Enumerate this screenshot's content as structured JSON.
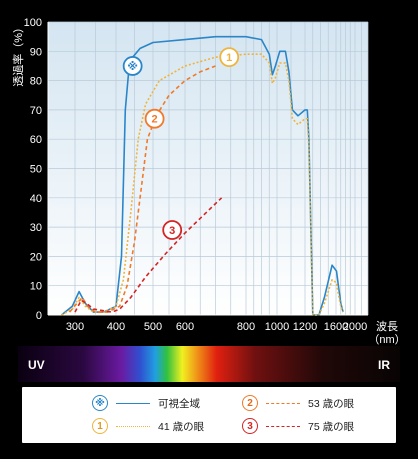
{
  "chart_data": {
    "type": "line",
    "ylabel": "透過率（%）",
    "xlabel": "波長（nm）",
    "ylim": [
      0,
      100
    ],
    "y_ticks": [
      "0",
      "10",
      "20",
      "30",
      "40",
      "50",
      "60",
      "70",
      "80",
      "90",
      "100"
    ],
    "x_tick_labels": [
      "300",
      "400",
      "500",
      "600",
      "800",
      "1000",
      "1200",
      "1600",
      "2000"
    ],
    "x_axis_title_lines": [
      "波長",
      "（nm）"
    ],
    "grid": true,
    "spectrum_band": {
      "left_label": "UV",
      "right_label": "IR"
    },
    "series": [
      {
        "name": "可視全域",
        "badge": "※",
        "color": "#2a86c8",
        "style": "solid",
        "points": [
          [
            275,
            0
          ],
          [
            295,
            3
          ],
          [
            310,
            8
          ],
          [
            325,
            4
          ],
          [
            345,
            1
          ],
          [
            370,
            1
          ],
          [
            400,
            3
          ],
          [
            415,
            20
          ],
          [
            425,
            70
          ],
          [
            435,
            84
          ],
          [
            445,
            88
          ],
          [
            465,
            91
          ],
          [
            500,
            93
          ],
          [
            600,
            94
          ],
          [
            700,
            95
          ],
          [
            800,
            95
          ],
          [
            900,
            94
          ],
          [
            950,
            89
          ],
          [
            970,
            82
          ],
          [
            990,
            85
          ],
          [
            1020,
            90
          ],
          [
            1060,
            90
          ],
          [
            1085,
            83
          ],
          [
            1110,
            70
          ],
          [
            1150,
            68
          ],
          [
            1200,
            70
          ],
          [
            1230,
            70
          ],
          [
            1250,
            60
          ],
          [
            1300,
            0
          ],
          [
            1380,
            0
          ],
          [
            1450,
            6
          ],
          [
            1550,
            17
          ],
          [
            1610,
            15
          ],
          [
            1650,
            10
          ],
          [
            1700,
            4
          ],
          [
            1750,
            1
          ]
        ]
      },
      {
        "name": "41 歳の眼",
        "badge": "1",
        "color": "#f0b43c",
        "style": "dotted",
        "points": [
          [
            275,
            0
          ],
          [
            295,
            2
          ],
          [
            310,
            6
          ],
          [
            325,
            3
          ],
          [
            345,
            1
          ],
          [
            370,
            1
          ],
          [
            400,
            3
          ],
          [
            420,
            12
          ],
          [
            440,
            35
          ],
          [
            460,
            60
          ],
          [
            480,
            72
          ],
          [
            520,
            80
          ],
          [
            600,
            85
          ],
          [
            700,
            88
          ],
          [
            800,
            89
          ],
          [
            900,
            89
          ],
          [
            950,
            86
          ],
          [
            970,
            79
          ],
          [
            990,
            81
          ],
          [
            1020,
            86
          ],
          [
            1060,
            86
          ],
          [
            1085,
            80
          ],
          [
            1110,
            67
          ],
          [
            1150,
            65
          ],
          [
            1200,
            67
          ],
          [
            1230,
            67
          ],
          [
            1250,
            57
          ],
          [
            1300,
            0
          ],
          [
            1380,
            0
          ],
          [
            1450,
            4
          ],
          [
            1550,
            12
          ],
          [
            1610,
            11
          ],
          [
            1650,
            7
          ],
          [
            1700,
            3
          ],
          [
            1750,
            1
          ]
        ]
      },
      {
        "name": "53 歳の眼",
        "badge": "2",
        "color": "#f07a28",
        "style": "dashed",
        "points": [
          [
            290,
            1
          ],
          [
            305,
            4
          ],
          [
            318,
            6
          ],
          [
            330,
            3
          ],
          [
            350,
            1
          ],
          [
            380,
            1
          ],
          [
            410,
            3
          ],
          [
            430,
            10
          ],
          [
            450,
            25
          ],
          [
            470,
            45
          ],
          [
            485,
            60
          ],
          [
            510,
            68
          ],
          [
            550,
            75
          ],
          [
            600,
            80
          ],
          [
            650,
            83
          ],
          [
            700,
            85
          ]
        ]
      },
      {
        "name": "75 歳の眼",
        "badge": "3",
        "color": "#d42424",
        "style": "dashed",
        "points": [
          [
            300,
            1
          ],
          [
            315,
            5
          ],
          [
            328,
            4
          ],
          [
            345,
            2
          ],
          [
            390,
            1
          ],
          [
            410,
            2
          ],
          [
            440,
            6
          ],
          [
            480,
            13
          ],
          [
            540,
            21
          ],
          [
            600,
            28
          ],
          [
            660,
            34
          ],
          [
            720,
            40
          ]
        ]
      }
    ],
    "callouts": [
      {
        "series": 0,
        "label": "※",
        "at": [
          445,
          85
        ]
      },
      {
        "series": 1,
        "label": "1",
        "at": [
          745,
          88
        ]
      },
      {
        "series": 2,
        "label": "2",
        "at": [
          505,
          67
        ]
      },
      {
        "series": 3,
        "label": "3",
        "at": [
          560,
          29
        ]
      }
    ]
  },
  "colors": {
    "background": "#000000",
    "plot_top": "#d4e5f1",
    "plot_bottom": "#ffffff",
    "grid": "#b9cad8"
  }
}
